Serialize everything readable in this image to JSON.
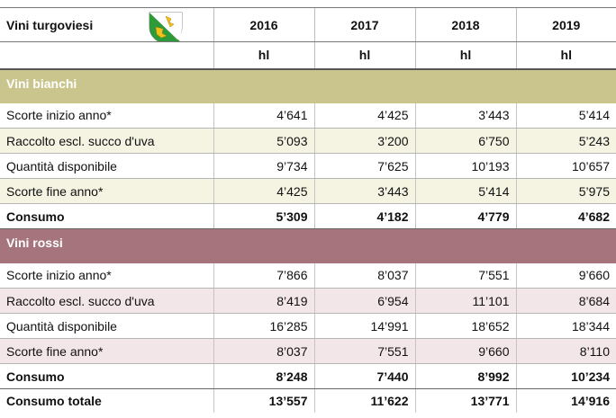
{
  "header": {
    "title": "Vini turgoviesi",
    "years": [
      "2016",
      "2017",
      "2018",
      "2019"
    ],
    "units": [
      "hl",
      "hl",
      "hl",
      "hl"
    ]
  },
  "sections": [
    {
      "name": "Vini bianchi",
      "rows": [
        {
          "label": "Scorte inizio anno*",
          "values": [
            "4’641",
            "4’425",
            "3’443",
            "5’414"
          ]
        },
        {
          "label": "Raccolto escl. succo d'uva",
          "values": [
            "5’093",
            "3’200",
            "6’750",
            "5’243"
          ]
        },
        {
          "label": "Quantità disponibile",
          "values": [
            "9’734",
            "7’625",
            "10’193",
            "10’657"
          ]
        },
        {
          "label": "Scorte fine anno*",
          "values": [
            "4’425",
            "3’443",
            "5’414",
            "5’975"
          ]
        },
        {
          "label": "Consumo",
          "values": [
            "5’309",
            "4’182",
            "4’779",
            "4’682"
          ]
        }
      ]
    },
    {
      "name": "Vini rossi",
      "rows": [
        {
          "label": "Scorte inizio anno*",
          "values": [
            "7’866",
            "8’037",
            "7’551",
            "9’660"
          ]
        },
        {
          "label": "Raccolto escl. succo d'uva",
          "values": [
            "8’419",
            "6’954",
            "11’101",
            "8’684"
          ]
        },
        {
          "label": "Quantità disponibile",
          "values": [
            "16’285",
            "14’991",
            "18’652",
            "18’344"
          ]
        },
        {
          "label": "Scorte fine anno*",
          "values": [
            "8’037",
            "7’551",
            "9’660",
            "8’110"
          ]
        },
        {
          "label": "Consumo",
          "values": [
            "8’248",
            "7’440",
            "8’992",
            "10’234"
          ]
        }
      ]
    }
  ],
  "total": {
    "label": "Consumo totale",
    "values": [
      "13’557",
      "11’622",
      "13’771",
      "14’916"
    ]
  }
}
